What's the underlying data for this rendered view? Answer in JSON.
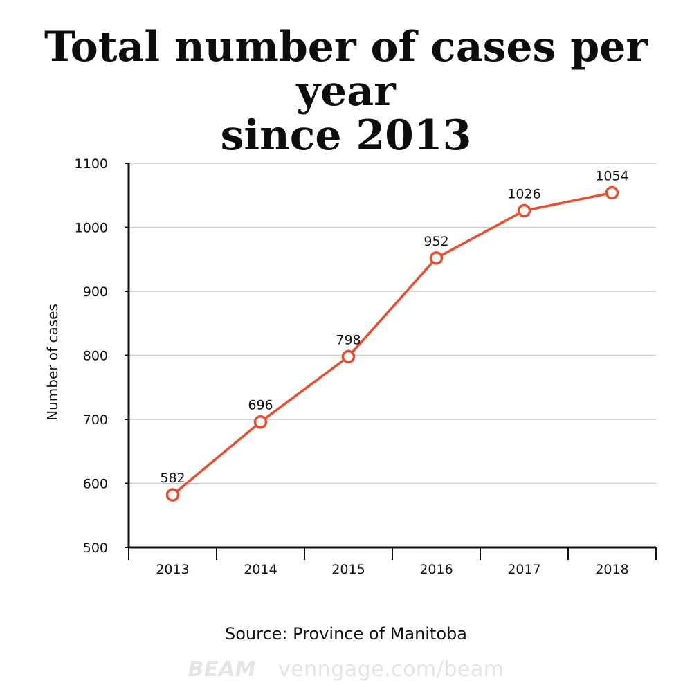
{
  "title": {
    "line1": "Total number of cases per year",
    "line2": "since 2013"
  },
  "source": "Source: Province of Manitoba",
  "footer": {
    "brand": "BEAM",
    "url": "venngage.com/beam"
  },
  "colors": {
    "line": "#ee4b2b",
    "grid": "#cccccc",
    "axis": "#111111"
  },
  "chart_data": {
    "type": "line",
    "title": "Total number of cases per year since 2013",
    "xlabel": "",
    "ylabel": "Number of cases",
    "categories": [
      "2013",
      "2014",
      "2015",
      "2016",
      "2017",
      "2018"
    ],
    "series": [
      {
        "values": [
          582,
          696,
          798,
          952,
          1026,
          1054
        ]
      }
    ],
    "ylim": [
      500,
      1100
    ],
    "yticks": [
      500,
      600,
      700,
      800,
      900,
      1000,
      1100
    ],
    "grid": true,
    "data_labels": true,
    "markers": "hollow-circle"
  }
}
